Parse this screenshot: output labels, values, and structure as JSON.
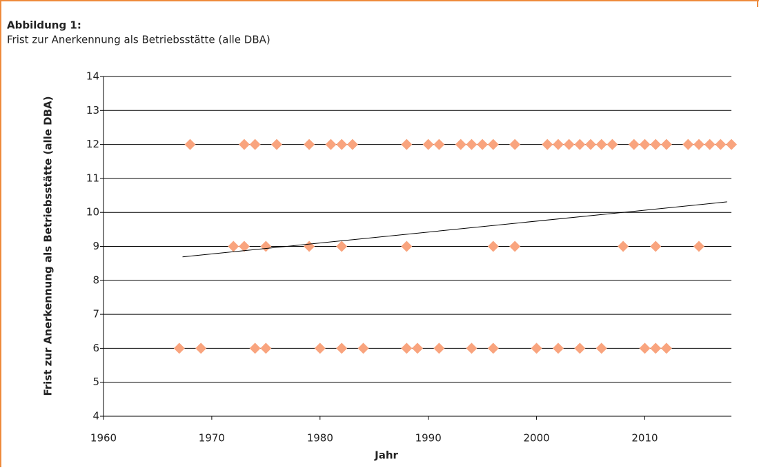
{
  "chart_data": {
    "type": "scatter",
    "figure_label": "Abbildung 1:",
    "title": "Frist zur Anerkennung als Betriebsstätte (alle DBA)",
    "xlabel": "Jahr",
    "ylabel": "Frist zur Anerkennung als Betriebsstätte (alle DBA)",
    "xlim": [
      1960,
      2018
    ],
    "xticks": [
      1960,
      1970,
      1980,
      1990,
      2000,
      2010
    ],
    "ylim": [
      4,
      14
    ],
    "yticks": [
      4,
      5,
      6,
      7,
      8,
      9,
      10,
      11,
      12,
      13,
      14
    ],
    "grid": true,
    "color": "#f9a47e",
    "x": [
      1968,
      1973,
      1974,
      1976,
      1979,
      1981,
      1982,
      1983,
      1988,
      1990,
      1991,
      1993,
      1994,
      1995,
      1996,
      1998,
      2001,
      2002,
      2003,
      2004,
      2005,
      2006,
      2007,
      2009,
      2010,
      2011,
      2012,
      2014,
      2015,
      2016,
      2017,
      2018,
      1972,
      1973,
      1975,
      1979,
      1982,
      1988,
      1996,
      1998,
      2008,
      2011,
      2015,
      1967,
      1969,
      1974,
      1975,
      1980,
      1982,
      1984,
      1988,
      1989,
      1991,
      1994,
      1996,
      2000,
      2002,
      2004,
      2006,
      2010,
      2011,
      2012
    ],
    "values": [
      12,
      12,
      12,
      12,
      12,
      12,
      12,
      12,
      12,
      12,
      12,
      12,
      12,
      12,
      12,
      12,
      12,
      12,
      12,
      12,
      12,
      12,
      12,
      12,
      12,
      12,
      12,
      12,
      12,
      12,
      12,
      12,
      9,
      9,
      9,
      9,
      9,
      9,
      9,
      9,
      9,
      9,
      9,
      6,
      6,
      6,
      6,
      6,
      6,
      6,
      6,
      6,
      6,
      6,
      6,
      6,
      6,
      6,
      6,
      6,
      6,
      6
    ],
    "trendline": {
      "x": [
        1967.3,
        2017.6
      ],
      "values": [
        8.69,
        10.31
      ],
      "color": "#000000"
    }
  }
}
